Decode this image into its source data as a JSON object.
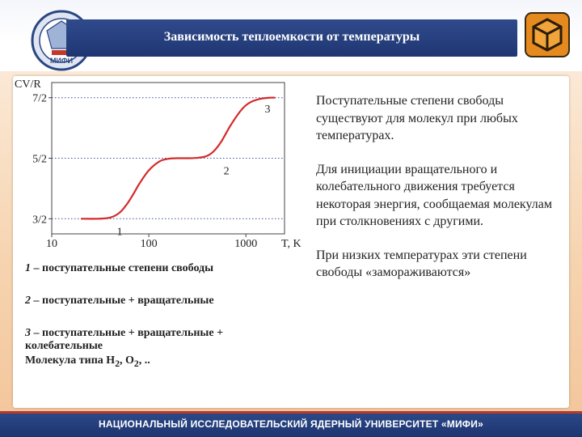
{
  "header": {
    "title": "Зависимость теплоемкости от температуры",
    "logo_left_text": "МИФИ",
    "colors": {
      "title_bar": "#23397a",
      "accent": "#c0392b"
    }
  },
  "chart_data": {
    "type": "line",
    "xlabel": "T, K",
    "ylabel": "CV/R",
    "xscale": "log",
    "xlim": [
      10,
      2500
    ],
    "ylim": [
      1.25,
      3.75
    ],
    "x_ticks": [
      10,
      100,
      1000
    ],
    "x_tick_labels": [
      "10",
      "100",
      "1000"
    ],
    "y_ticks": [
      1.5,
      2.5,
      3.5
    ],
    "y_tick_labels": [
      "3/2",
      "5/2",
      "7/2"
    ],
    "grid": "dotted horizontal at y ticks",
    "series": [
      {
        "color": "#d42a2a",
        "x": [
          20,
          30,
          40,
          50,
          60,
          70,
          80,
          100,
          130,
          160,
          200,
          260,
          330,
          400,
          470,
          560,
          700,
          900,
          1100,
          1400,
          1800,
          2000
        ],
        "y": [
          1.5,
          1.5,
          1.52,
          1.6,
          1.75,
          1.92,
          2.08,
          2.3,
          2.45,
          2.49,
          2.5,
          2.5,
          2.51,
          2.54,
          2.62,
          2.78,
          3.05,
          3.3,
          3.42,
          3.48,
          3.5,
          3.5
        ]
      }
    ],
    "annotations": [
      {
        "text": "1",
        "x": 50,
        "y": 1.3
      },
      {
        "text": "2",
        "x": 630,
        "y": 2.3
      },
      {
        "text": "3",
        "x": 1670,
        "y": 3.32
      }
    ]
  },
  "legend": {
    "items": [
      {
        "num": "1",
        "text": " – поступательные степени свободы"
      },
      {
        "num": "2",
        "text": " – поступательные + вращательные"
      },
      {
        "num": "3",
        "text": " – поступательные + вращательные + колебательные"
      }
    ],
    "molecule": {
      "prefix": "Молекула типа Н",
      "sub1": "2",
      "mid": ", О",
      "sub2": "2",
      "suffix": ", .."
    }
  },
  "right_text": {
    "p1": "Поступательные степени свободы существуют для молекул при любых температурах.",
    "p2": "Для инициации вращательного и колебательного движения требуется некоторая энергия, сообщаемая молекулам при столкновениях с другими.",
    "p3": "При низких температурах эти степени свободы «замораживаются»"
  },
  "footer": {
    "text": "НАЦИОНАЛЬНЫЙ ИССЛЕДОВАТЕЛЬСКИЙ ЯДЕРНЫЙ УНИВЕРСИТЕТ «МИФИ»"
  }
}
